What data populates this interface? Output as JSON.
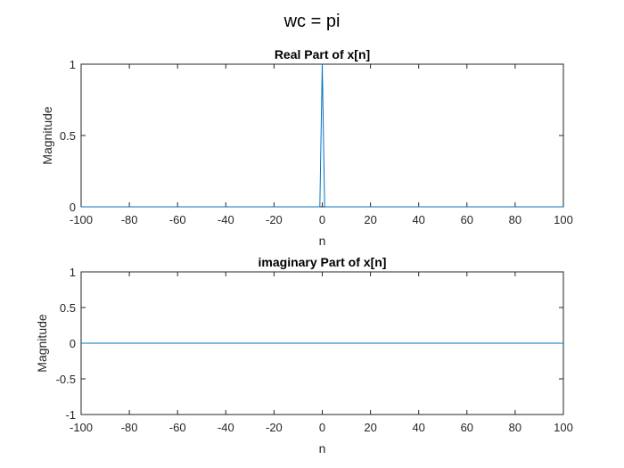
{
  "figure_title": "wc = pi",
  "chart_data": [
    {
      "type": "line",
      "title": "Real Part of x[n]",
      "xlabel": "n",
      "ylabel": "Magnitude",
      "xlim": [
        -100,
        100
      ],
      "ylim": [
        0,
        1
      ],
      "xticks": [
        -100,
        -80,
        -60,
        -40,
        -20,
        0,
        20,
        40,
        60,
        80,
        100
      ],
      "xtick_labels": [
        "-100",
        "-80",
        "-60",
        "-40",
        "-20",
        "0",
        "20",
        "40",
        "60",
        "80",
        "100"
      ],
      "yticks": [
        0,
        0.5,
        1
      ],
      "ytick_labels": [
        "0",
        "0.5",
        "1"
      ],
      "grid": false,
      "line_color": "#0072BD",
      "series": [
        {
          "x": [
            -100,
            -1,
            0,
            1,
            100
          ],
          "y": [
            0,
            0,
            1,
            0,
            0
          ]
        }
      ]
    },
    {
      "type": "line",
      "title": "imaginary Part of x[n]",
      "xlabel": "n",
      "ylabel": "Magnitude",
      "xlim": [
        -100,
        100
      ],
      "ylim": [
        -1,
        1
      ],
      "xticks": [
        -100,
        -80,
        -60,
        -40,
        -20,
        0,
        20,
        40,
        60,
        80,
        100
      ],
      "xtick_labels": [
        "-100",
        "-80",
        "-60",
        "-40",
        "-20",
        "0",
        "20",
        "40",
        "60",
        "80",
        "100"
      ],
      "yticks": [
        -1,
        -0.5,
        0,
        0.5,
        1
      ],
      "ytick_labels": [
        "-1",
        "-0.5",
        "0",
        "0.5",
        "1"
      ],
      "grid": false,
      "line_color": "#0072BD",
      "series": [
        {
          "x": [
            -100,
            100
          ],
          "y": [
            0,
            0
          ]
        }
      ]
    }
  ]
}
